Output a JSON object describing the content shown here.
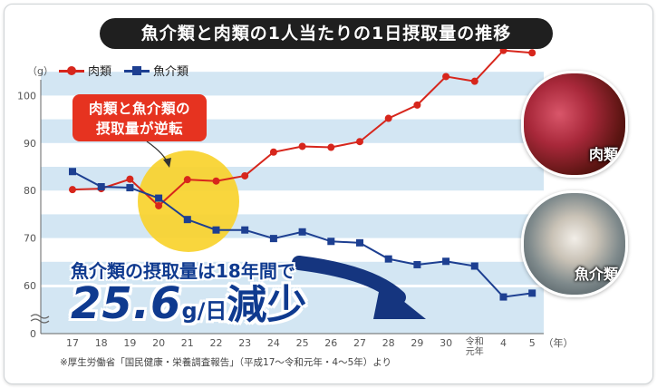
{
  "title": "魚介類と肉類の1人当たりの1日摂取量の推移",
  "unit_label": "（g）",
  "x_unit_label": "（年）",
  "legend": [
    {
      "label": "肉類",
      "color": "#d7261c",
      "marker": "circle"
    },
    {
      "label": "魚介類",
      "color": "#1d3f91",
      "marker": "square"
    }
  ],
  "callout": {
    "line1": "肉類と魚介類の",
    "line2": "摂取量が逆転"
  },
  "message": {
    "sub": "魚介類の摂取量は18年間で",
    "number": "25.6",
    "unit": "g/日",
    "word": "減少"
  },
  "source": "※厚生労働省「国民健康・栄養調査報告」（平成17〜令和元年・4〜5年）より",
  "photos": [
    {
      "label": "肉類"
    },
    {
      "label": "魚介類"
    }
  ],
  "chart_data": {
    "type": "line",
    "categories": [
      "17",
      "18",
      "19",
      "20",
      "21",
      "22",
      "23",
      "24",
      "25",
      "26",
      "27",
      "28",
      "29",
      "30",
      "令和元年",
      "4",
      "5"
    ],
    "series": [
      {
        "name": "肉類",
        "values": [
          80.2,
          80.4,
          82.4,
          76.8,
          82.3,
          82.0,
          83.1,
          88.1,
          89.3,
          89.1,
          90.3,
          95.2,
          98.0,
          104.0,
          103.0,
          109.5,
          109.0
        ]
      },
      {
        "name": "魚介類",
        "values": [
          84.0,
          80.8,
          80.6,
          78.4,
          73.9,
          71.7,
          71.7,
          69.9,
          71.3,
          69.3,
          69.0,
          65.6,
          64.4,
          65.1,
          64.1,
          57.6,
          58.4
        ]
      }
    ],
    "yticks": [
      0,
      60,
      70,
      80,
      90,
      100
    ],
    "ylim": [
      0,
      110
    ],
    "axis_break": true,
    "grid": "alternating horizontal bands"
  }
}
